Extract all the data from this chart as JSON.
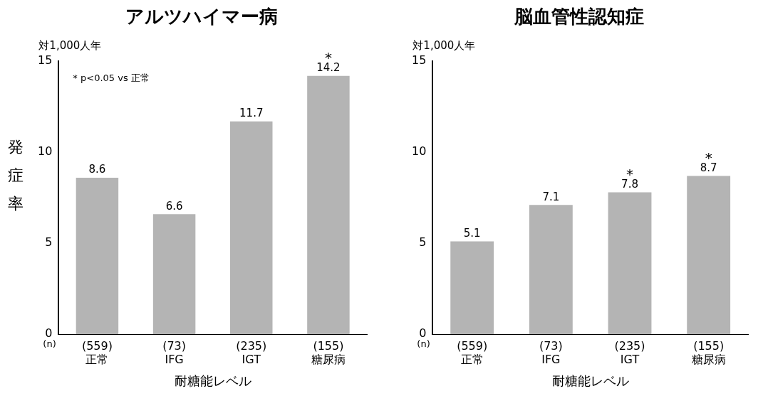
{
  "chart_data": [
    {
      "type": "bar",
      "title": "アルツハイマー病",
      "ylabel": "発症率",
      "xlabel": "耐糖能レベル",
      "categories": [
        "(559)\n正常",
        "(73)\nIFG",
        "(235)\nIGT",
        "(155)\n糖尿病"
      ],
      "values": [
        8.6,
        6.6,
        11.7,
        14.2
      ],
      "color": "#b4b4b4",
      "data_labels": true,
      "ylim": [
        0,
        15
      ],
      "yticks": [
        0,
        5,
        10,
        15
      ],
      "grid": false,
      "legend": false,
      "annotations": [
        "対1,000人年",
        "(n)",
        "* p<0.05 vs 正常",
        {
          "text": "*",
          "x": "(155)\n糖尿病",
          "y": 14.2
        }
      ]
    },
    {
      "type": "bar",
      "title": "脳血管性認知症",
      "xlabel": "耐糖能レベル",
      "categories": [
        "(559)\n正常",
        "(73)\nIFG",
        "(235)\nIGT",
        "(155)\n糖尿病"
      ],
      "values": [
        5.1,
        7.1,
        7.8,
        8.7
      ],
      "color": "#b4b4b4",
      "data_labels": true,
      "ylim": [
        0,
        15
      ],
      "yticks": [
        0,
        5,
        10,
        15
      ],
      "grid": false,
      "legend": false,
      "annotations": [
        "対1,000人年",
        "(n)",
        {
          "text": "*",
          "x": "(235)\nIGT",
          "y": 7.8
        },
        {
          "text": "*",
          "x": "(155)\n糖尿病",
          "y": 8.7
        }
      ]
    }
  ]
}
